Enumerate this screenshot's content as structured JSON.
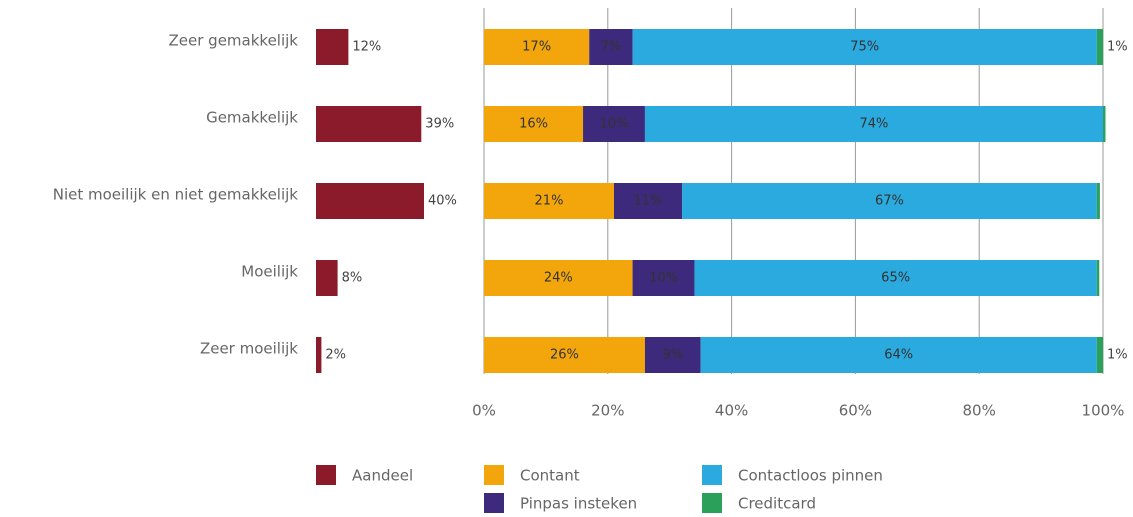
{
  "chart_data": [
    {
      "type": "bar",
      "categories": [
        "Zeer gemakkelijk",
        "Gemakkelijk",
        "Niet moeilijk en niet gemakkelijk",
        "Moeilijk",
        "Zeer moeilijk"
      ],
      "series": [
        {
          "name": "Aandeel",
          "color": "#8b1a2a",
          "values": [
            12,
            39,
            40,
            8,
            2
          ],
          "value_labels": [
            "12%",
            "39%",
            "40%",
            "8%",
            "2%"
          ]
        }
      ]
    },
    {
      "type": "stacked_bar",
      "xlim": [
        0,
        100
      ],
      "xticks": [
        {
          "value": 0,
          "label": "0%"
        },
        {
          "value": 20,
          "label": "20%"
        },
        {
          "value": 40,
          "label": "40%"
        },
        {
          "value": 60,
          "label": "60%"
        },
        {
          "value": 80,
          "label": "80%"
        },
        {
          "value": 100,
          "label": "100%"
        }
      ],
      "grid": true,
      "series": [
        {
          "name": "Contant",
          "color": "#f2a60c",
          "values": [
            17,
            16,
            21,
            24,
            26
          ],
          "value_labels": [
            "17%",
            "16%",
            "21%",
            "24%",
            "26%"
          ]
        },
        {
          "name": "Pinpas insteken",
          "color": "#3e2a7c",
          "values": [
            7,
            10,
            11,
            10,
            9
          ],
          "value_labels": [
            "7%",
            "10%",
            "11%",
            "10%",
            "9%"
          ]
        },
        {
          "name": "Contactloos pinnen",
          "color": "#2aaadf",
          "values": [
            75,
            74,
            67,
            65,
            64
          ],
          "value_labels": [
            "75%",
            "74%",
            "67%",
            "65%",
            "64%"
          ]
        },
        {
          "name": "Creditcard",
          "color": "#2aa05a",
          "values": [
            1,
            0.4,
            0.5,
            0.4,
            1
          ],
          "value_labels": [
            "1%",
            null,
            null,
            null,
            "1%"
          ]
        }
      ]
    }
  ]
}
